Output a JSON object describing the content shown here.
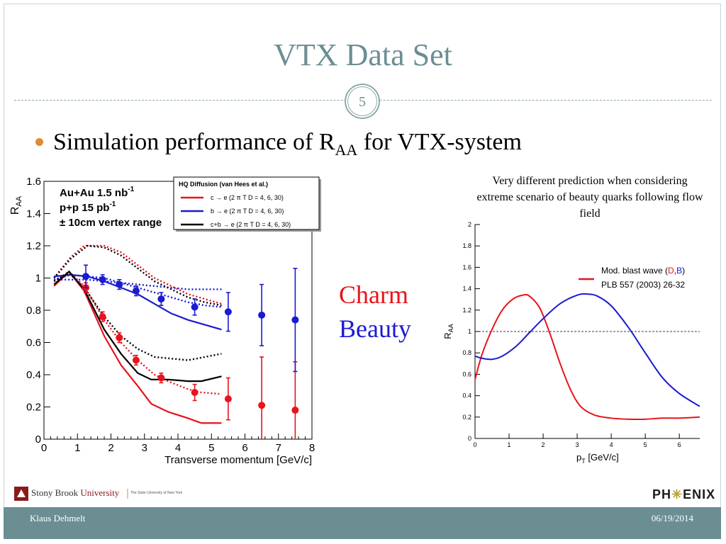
{
  "slide": {
    "title": "VTX Data Set",
    "slide_number": "5",
    "bullet": {
      "text": "Simulation performance of R",
      "sub": "AA",
      "tail": " for VTX-system"
    },
    "charm_label": "Charm",
    "beauty_label": "Beauty",
    "annotation": "Very different prediction when considering extreme scenario of beauty quarks following flow field",
    "footer": {
      "author": "Klaus Dehmelt",
      "date": "06/19/2014"
    },
    "logos": {
      "university": "Stony Brook",
      "university_word": "University",
      "university_sub": "The State University of New York",
      "experiment_pre": "PH",
      "experiment_post": "ENIX"
    }
  },
  "chart_data": [
    {
      "type": "line",
      "xlabel": "Transverse momentum [GeV/c]",
      "ylabel": "R_AA",
      "xlim": [
        0,
        8
      ],
      "ylim": [
        0,
        1.6
      ],
      "xticks": [
        0,
        1,
        2,
        3,
        4,
        5,
        6,
        7,
        8
      ],
      "yticks": [
        0,
        0.2,
        0.4,
        0.6,
        0.8,
        1,
        1.2,
        1.4,
        1.6
      ],
      "labels_top_left": [
        "Au+Au 1.5 nb",
        "p+p 15 pb",
        "± 10cm vertex range"
      ],
      "label_sups": [
        "-1",
        "-1",
        ""
      ],
      "legend_title": "HQ Diffusion (van Hees et al.)",
      "legend_entries": [
        {
          "text": "c → e (2 π T D = 4, 6, 30)",
          "color": "#e8131b"
        },
        {
          "text": "b → e (2 π T D = 4, 6, 30)",
          "color": "#1a1ad2"
        },
        {
          "text": "c+b → e (2 π T D = 4, 6, 30)",
          "color": "#000000"
        }
      ],
      "series": [
        {
          "color": "#e8131b",
          "style": "solid",
          "x": [
            0.3,
            0.75,
            1.2,
            1.8,
            2.3,
            2.8,
            3.2,
            3.7,
            4.3,
            4.7,
            5.3
          ],
          "y": [
            0.95,
            1.04,
            0.92,
            0.64,
            0.46,
            0.33,
            0.22,
            0.17,
            0.13,
            0.1,
            0.1
          ]
        },
        {
          "color": "#e8131b",
          "style": "dotted",
          "x": [
            0.3,
            0.75,
            1.2,
            1.8,
            2.3,
            2.8,
            3.3,
            3.7,
            4.3,
            4.7,
            5.3
          ],
          "y": [
            0.98,
            1.04,
            0.95,
            0.74,
            0.6,
            0.49,
            0.4,
            0.36,
            0.31,
            0.29,
            0.28
          ]
        },
        {
          "color": "#e8131b",
          "style": "dotted",
          "x": [
            0.3,
            0.8,
            1.2,
            1.8,
            2.3,
            2.8,
            3.3,
            3.8,
            4.3,
            4.8,
            5.3
          ],
          "y": [
            1.0,
            1.13,
            1.2,
            1.2,
            1.16,
            1.08,
            1.0,
            0.95,
            0.9,
            0.87,
            0.84
          ]
        },
        {
          "color": "#1a1ad2",
          "style": "solid",
          "x": [
            0.3,
            0.8,
            1.3,
            1.8,
            2.3,
            2.8,
            3.3,
            3.8,
            4.3,
            4.8,
            5.3
          ],
          "y": [
            1.01,
            1.02,
            1.01,
            0.98,
            0.94,
            0.9,
            0.84,
            0.78,
            0.74,
            0.71,
            0.68
          ]
        },
        {
          "color": "#1a1ad2",
          "style": "dotted",
          "x": [
            0.3,
            0.8,
            1.3,
            1.8,
            2.3,
            2.8,
            3.3,
            3.8,
            4.3,
            4.8,
            5.3
          ],
          "y": [
            0.99,
            1.02,
            1.01,
            1.0,
            0.97,
            0.94,
            0.91,
            0.88,
            0.85,
            0.83,
            0.82
          ]
        },
        {
          "color": "#1a1ad2",
          "style": "dotted",
          "x": [
            0.3,
            0.8,
            1.3,
            1.8,
            2.3,
            2.8,
            3.3,
            3.8,
            4.3,
            4.8,
            5.3
          ],
          "y": [
            0.99,
            0.99,
            0.99,
            0.98,
            0.97,
            0.96,
            0.95,
            0.94,
            0.93,
            0.93,
            0.93
          ]
        },
        {
          "color": "#000000",
          "style": "solid",
          "x": [
            0.3,
            0.75,
            1.2,
            1.8,
            2.3,
            2.8,
            3.2,
            3.7,
            4.3,
            4.7,
            5.3
          ],
          "y": [
            0.96,
            1.04,
            0.93,
            0.68,
            0.53,
            0.41,
            0.37,
            0.37,
            0.36,
            0.36,
            0.39
          ]
        },
        {
          "color": "#000000",
          "style": "dotted",
          "x": [
            0.3,
            0.75,
            1.2,
            1.8,
            2.3,
            2.8,
            3.3,
            3.8,
            4.3,
            4.8,
            5.3
          ],
          "y": [
            0.98,
            1.03,
            0.94,
            0.76,
            0.64,
            0.56,
            0.51,
            0.5,
            0.49,
            0.51,
            0.53
          ]
        },
        {
          "color": "#000000",
          "style": "dotted",
          "x": [
            0.3,
            0.8,
            1.3,
            1.8,
            2.3,
            2.8,
            3.3,
            3.8,
            4.3,
            4.8,
            5.3
          ],
          "y": [
            1.0,
            1.12,
            1.2,
            1.19,
            1.14,
            1.06,
            0.98,
            0.93,
            0.88,
            0.85,
            0.83
          ]
        }
      ],
      "points": [
        {
          "name": "charm-data",
          "color": "#e8131b",
          "x": [
            1.25,
            1.75,
            2.25,
            2.75,
            3.5,
            4.5,
            5.5,
            6.5,
            7.5
          ],
          "y": [
            0.94,
            0.76,
            0.63,
            0.49,
            0.38,
            0.29,
            0.25,
            0.21,
            0.18
          ],
          "err": [
            0.03,
            0.03,
            0.03,
            0.03,
            0.03,
            0.05,
            0.13,
            0.3,
            0.3
          ]
        },
        {
          "name": "beauty-data",
          "color": "#1a1ad2",
          "x": [
            1.25,
            1.75,
            2.25,
            2.75,
            3.5,
            4.5,
            5.5,
            6.5,
            7.5
          ],
          "y": [
            1.01,
            0.99,
            0.96,
            0.92,
            0.87,
            0.82,
            0.79,
            0.77,
            0.74
          ],
          "err": [
            0.07,
            0.03,
            0.03,
            0.03,
            0.04,
            0.05,
            0.12,
            0.19,
            0.32
          ]
        }
      ]
    },
    {
      "type": "line",
      "xlabel": "p_T [GeV/c]",
      "ylabel": "R_AA",
      "xlim": [
        0,
        6.6
      ],
      "ylim": [
        0,
        2
      ],
      "xticks": [
        0,
        1,
        2,
        3,
        4,
        5,
        6
      ],
      "yticks": [
        0,
        0.2,
        0.4,
        0.6,
        0.8,
        1,
        1.2,
        1.4,
        1.6,
        1.8,
        2
      ],
      "reference_line": 1,
      "legend_entries": [
        {
          "parts": [
            "Mod. blast wave (",
            "D",
            ",",
            "B",
            ")"
          ],
          "colors": [
            "#000",
            "#e8131b",
            "#000",
            "#1a1ad2",
            "#000"
          ]
        },
        {
          "text": "PLB 557 (2003) 26-32"
        }
      ],
      "series": [
        {
          "name": "D",
          "color": "#e8131b",
          "x": [
            0,
            0.2,
            0.5,
            0.8,
            1.1,
            1.4,
            1.6,
            1.9,
            2.2,
            2.5,
            2.8,
            3.1,
            3.5,
            4.0,
            4.5,
            5.0,
            5.5,
            6.0,
            6.6
          ],
          "y": [
            0.55,
            0.78,
            1.02,
            1.2,
            1.3,
            1.34,
            1.33,
            1.22,
            0.98,
            0.7,
            0.46,
            0.3,
            0.22,
            0.19,
            0.18,
            0.18,
            0.19,
            0.19,
            0.2
          ]
        },
        {
          "name": "B",
          "color": "#1a1ad2",
          "x": [
            0,
            0.2,
            0.5,
            0.8,
            1.2,
            1.6,
            2.0,
            2.5,
            3.0,
            3.3,
            3.6,
            4.0,
            4.5,
            5.0,
            5.5,
            6.0,
            6.6
          ],
          "y": [
            0.77,
            0.75,
            0.74,
            0.77,
            0.86,
            0.99,
            1.12,
            1.26,
            1.34,
            1.35,
            1.33,
            1.24,
            1.04,
            0.8,
            0.57,
            0.42,
            0.3
          ]
        }
      ]
    }
  ]
}
